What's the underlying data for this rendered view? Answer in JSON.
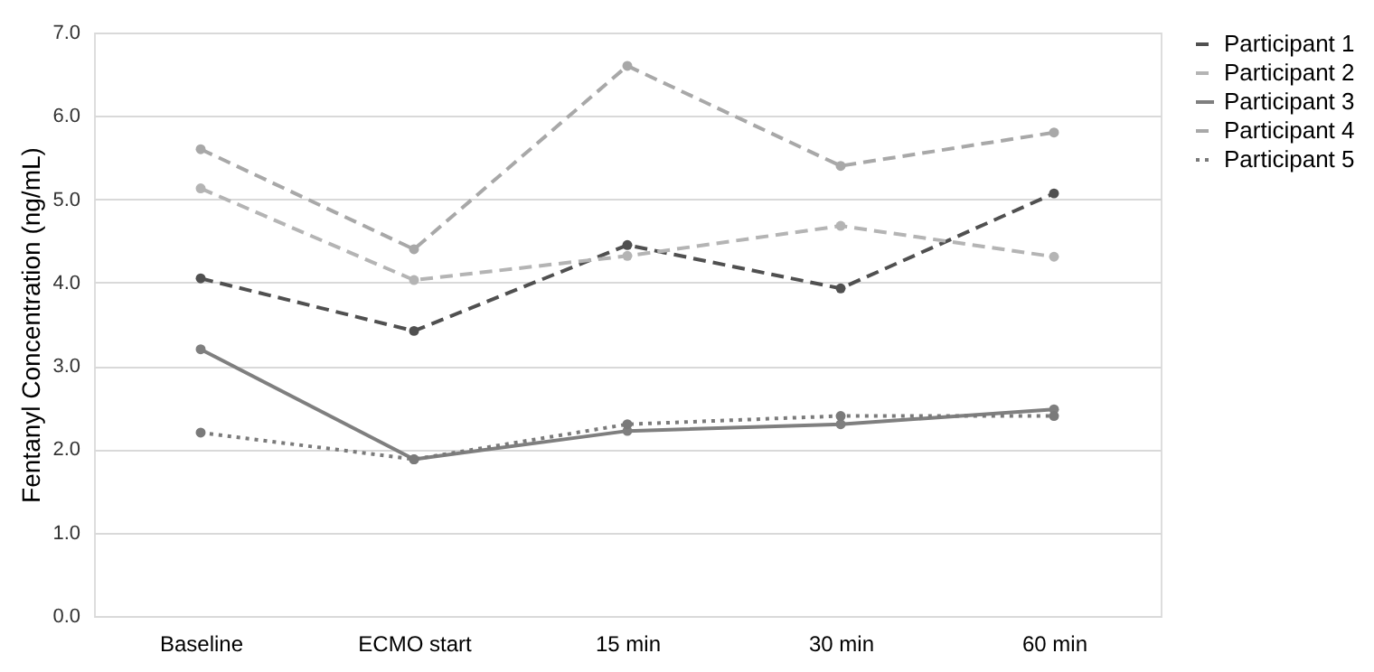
{
  "chart_data": {
    "type": "line",
    "ylabel": "Fentanyl Concentration (ng/mL)",
    "categories": [
      "Baseline",
      "ECMO start",
      "15 min",
      "30 min",
      "60 min"
    ],
    "series": [
      {
        "name": "Participant 1",
        "color": "#505050",
        "line_style": "dashed",
        "values": [
          4.05,
          3.42,
          4.45,
          3.93,
          5.07
        ]
      },
      {
        "name": "Participant 2",
        "color": "#b4b4b4",
        "line_style": "dashed",
        "values": [
          5.13,
          4.03,
          4.32,
          4.68,
          4.31
        ]
      },
      {
        "name": "Participant 3",
        "color": "#7f7f7f",
        "line_style": "solid",
        "values": [
          3.2,
          1.88,
          2.22,
          2.3,
          2.48
        ]
      },
      {
        "name": "Participant 4",
        "color": "#a8a8a8",
        "line_style": "dashed",
        "values": [
          5.6,
          4.4,
          6.6,
          5.4,
          5.8
        ]
      },
      {
        "name": "Participant 5",
        "color": "#7a7a7a",
        "line_style": "dotted",
        "values": [
          2.2,
          1.88,
          2.3,
          2.4,
          2.4
        ]
      }
    ],
    "ylim": [
      0,
      7
    ],
    "yticks": [
      {
        "value": 0,
        "label": "0.0"
      },
      {
        "value": 1,
        "label": "1.0"
      },
      {
        "value": 2,
        "label": "2.0"
      },
      {
        "value": 3,
        "label": "3.0"
      },
      {
        "value": 4,
        "label": "4.0"
      },
      {
        "value": 5,
        "label": "5.0"
      },
      {
        "value": 6,
        "label": "6.0"
      },
      {
        "value": 7,
        "label": "7.0"
      }
    ],
    "grid": "y",
    "legend": "right",
    "marker": "circle"
  }
}
